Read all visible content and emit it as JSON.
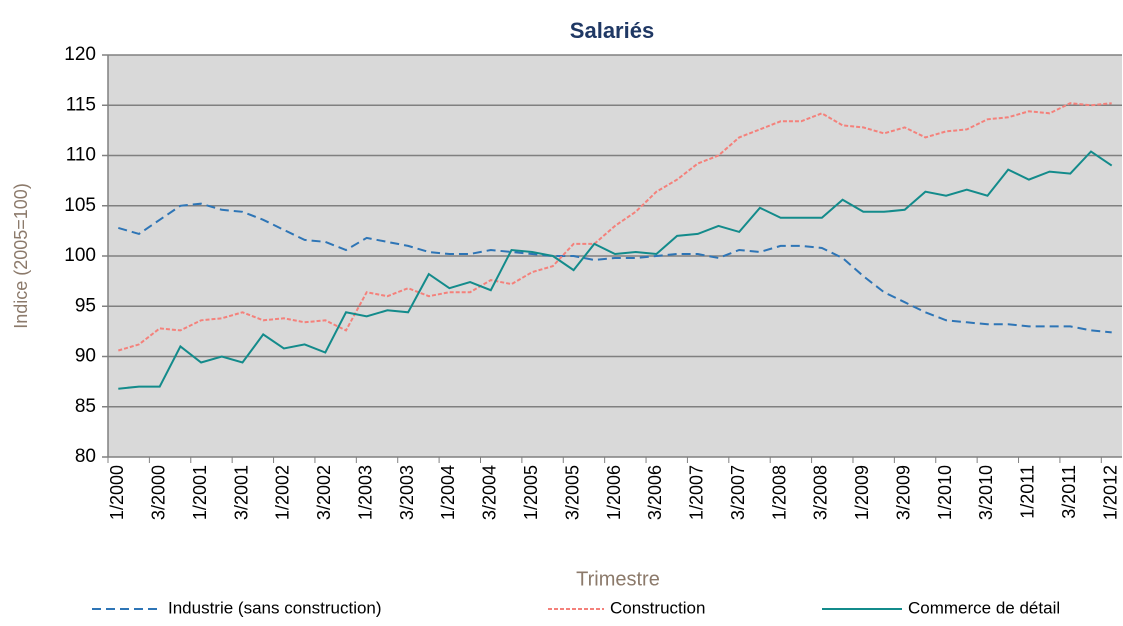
{
  "chart_data": {
    "type": "line",
    "title": "Salariés",
    "y_label": "Indice (2005=100)",
    "x_label": "Trimestre",
    "categories": [
      "1/2000",
      null,
      "3/2000",
      null,
      "1/2001",
      null,
      "3/2001",
      null,
      "1/2002",
      null,
      "3/2002",
      null,
      "1/2003",
      null,
      "3/2003",
      null,
      "1/2004",
      null,
      "3/2004",
      null,
      "1/2005",
      null,
      "3/2005",
      null,
      "1/2006",
      null,
      "3/2006",
      null,
      "1/2007",
      null,
      "3/2007",
      null,
      "1/2008",
      null,
      "3/2008",
      null,
      "1/2009",
      null,
      "3/2009",
      null,
      "1/2010",
      null,
      "3/2010",
      null,
      "1/2011",
      null,
      "3/2011",
      null,
      "1/2012"
    ],
    "series": [
      {
        "name": "Industrie (sans construction)",
        "color": "#2e75b6",
        "dash": "dashed",
        "values": [
          102.8,
          102.2,
          103.6,
          105.0,
          105.2,
          104.6,
          104.4,
          103.6,
          102.6,
          101.6,
          101.4,
          100.6,
          101.8,
          101.4,
          101.0,
          100.4,
          100.2,
          100.2,
          100.6,
          100.4,
          100.2,
          100.0,
          100.0,
          99.6,
          99.8,
          99.8,
          100.0,
          100.2,
          100.2,
          99.8,
          100.6,
          100.4,
          101.0,
          101.0,
          100.8,
          99.8,
          98.0,
          96.4,
          95.4,
          94.4,
          93.6,
          93.4,
          93.2,
          93.2,
          93.0,
          93.0,
          93.0,
          92.6,
          92.4
        ]
      },
      {
        "name": "Construction",
        "color": "#f4817b",
        "dash": "dotted",
        "values": [
          90.6,
          91.2,
          92.8,
          92.6,
          93.6,
          93.8,
          94.4,
          93.6,
          93.8,
          93.4,
          93.6,
          92.6,
          96.4,
          96.0,
          96.8,
          96.0,
          96.4,
          96.4,
          97.6,
          97.2,
          98.4,
          99.0,
          101.2,
          101.2,
          103.0,
          104.4,
          106.4,
          107.6,
          109.2,
          110.0,
          111.8,
          112.6,
          113.4,
          113.4,
          114.2,
          113.0,
          112.8,
          112.2,
          112.8,
          111.8,
          112.4,
          112.6,
          113.6,
          113.8,
          114.4,
          114.2,
          115.2,
          115.0,
          115.2
        ]
      },
      {
        "name": "Commerce de détail",
        "color": "#138b8b",
        "dash": "solid",
        "values": [
          86.8,
          87.0,
          87.0,
          91.0,
          89.4,
          90.0,
          89.4,
          92.2,
          90.8,
          91.2,
          90.4,
          94.4,
          94.0,
          94.6,
          94.4,
          98.2,
          96.8,
          97.4,
          96.6,
          100.6,
          100.4,
          100.0,
          98.6,
          101.2,
          100.2,
          100.4,
          100.2,
          102.0,
          102.2,
          103.0,
          102.4,
          104.8,
          103.8,
          103.8,
          103.8,
          105.6,
          104.4,
          104.4,
          104.6,
          106.4,
          106.0,
          106.6,
          106.0,
          108.6,
          107.6,
          108.4,
          108.2,
          110.4,
          109.0
        ]
      }
    ],
    "ylim": [
      80,
      120
    ],
    "yticks": [
      80,
      85,
      90,
      95,
      100,
      105,
      110,
      115,
      120
    ],
    "grid": true,
    "legend": "bottom"
  }
}
